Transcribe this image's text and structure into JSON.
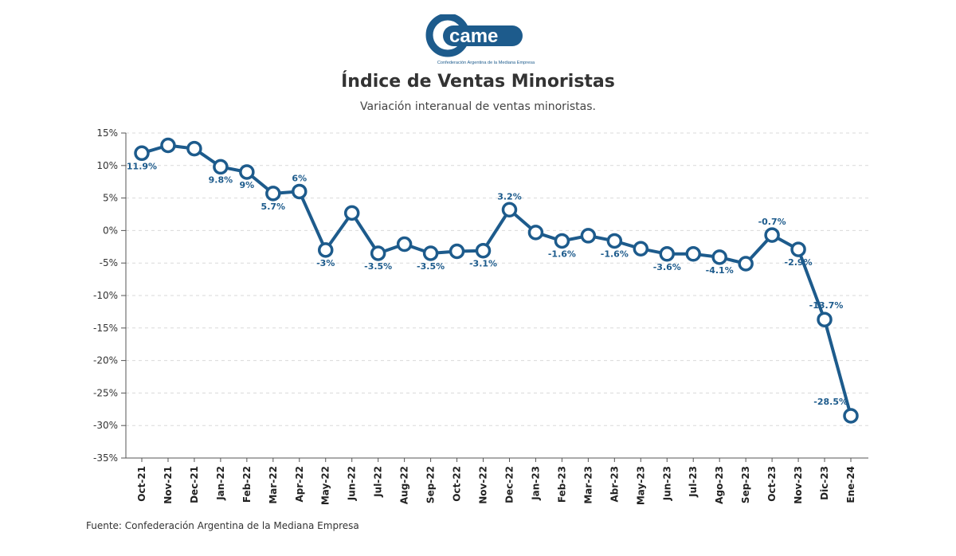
{
  "logo": {
    "text": "came",
    "tagline": "Confederación Argentina de la Mediana Empresa"
  },
  "header": {
    "title": "Índice de Ventas Minoristas",
    "subtitle": "Variación interanual de ventas minoristas."
  },
  "footer": {
    "source": "Fuente: Confederación Argentina de la Mediana Empresa"
  },
  "colors": {
    "line": "#1d5b8c",
    "label": "#1d5b8c",
    "grid": "#d9d9d9"
  },
  "chart_data": {
    "type": "line",
    "title": "Índice de Ventas Minoristas",
    "subtitle": "Variación interanual de ventas minoristas.",
    "xlabel": "",
    "ylabel": "",
    "ylim": [
      -35,
      15
    ],
    "yticks": [
      15,
      10,
      5,
      0,
      -5,
      -10,
      -15,
      -20,
      -25,
      -30,
      -35
    ],
    "ytick_labels": [
      "15%",
      "10%",
      "5%",
      "0%",
      "-5%",
      "-10%",
      "-15%",
      "-20%",
      "-25%",
      "-30%",
      "-35%"
    ],
    "grid": "horizontal-dashed",
    "categories": [
      "Oct-21",
      "Nov-21",
      "Dec-21",
      "Jan-22",
      "Feb-22",
      "Mar-22",
      "Apr-22",
      "May-22",
      "Jun-22",
      "Jul-22",
      "Aug-22",
      "Sep-22",
      "Oct-22",
      "Nov-22",
      "Dec-22",
      "Jan-23",
      "Feb-23",
      "Mar-23",
      "Abr-23",
      "May-23",
      "Jun-23",
      "Jul-23",
      "Ago-23",
      "Sep-23",
      "Oct-23",
      "Nov-23",
      "Dic-23",
      "Ene-24"
    ],
    "values": [
      11.9,
      13.1,
      12.6,
      9.8,
      9.0,
      5.7,
      6.0,
      -3.0,
      2.7,
      -3.5,
      -2.1,
      -3.5,
      -3.2,
      -3.1,
      3.2,
      -0.3,
      -1.6,
      -0.8,
      -1.6,
      -2.8,
      -3.6,
      -3.6,
      -4.1,
      -5.1,
      -0.7,
      -2.9,
      -13.7,
      -28.5
    ],
    "data_labels": [
      {
        "index": 0,
        "text": "11.9%"
      },
      {
        "index": 3,
        "text": "9.8%"
      },
      {
        "index": 4,
        "text": "9%"
      },
      {
        "index": 5,
        "text": "5.7%"
      },
      {
        "index": 6,
        "text": "6%"
      },
      {
        "index": 7,
        "text": "-3%"
      },
      {
        "index": 9,
        "text": "-3.5%"
      },
      {
        "index": 11,
        "text": "-3.5%"
      },
      {
        "index": 13,
        "text": "-3.1%"
      },
      {
        "index": 14,
        "text": "3.2%"
      },
      {
        "index": 16,
        "text": "-1.6%"
      },
      {
        "index": 18,
        "text": "-1.6%"
      },
      {
        "index": 20,
        "text": "-3.6%"
      },
      {
        "index": 22,
        "text": "-4.1%"
      },
      {
        "index": 24,
        "text": "-0.7%"
      },
      {
        "index": 25,
        "text": "-2.9%"
      },
      {
        "index": 26,
        "text": "-13.7%"
      },
      {
        "index": 27,
        "text": "-28.5%"
      }
    ]
  }
}
